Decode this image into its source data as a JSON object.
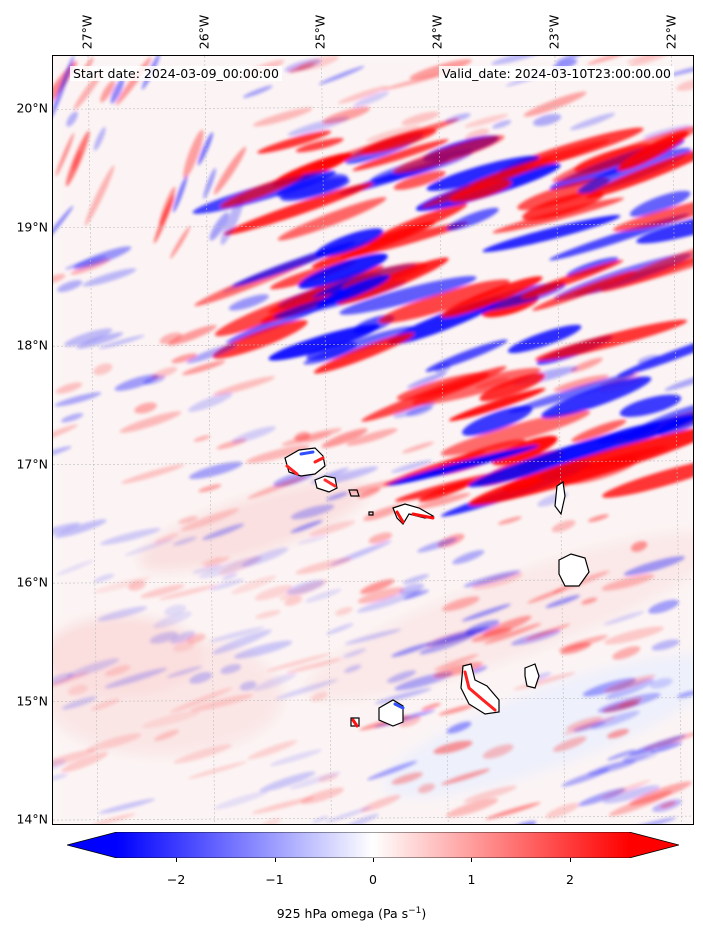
{
  "annotations": {
    "start_date": "Start date: 2024-03-09_00:00:00",
    "valid_date": "Valid_date: 2024-03-10T23:00:00.00"
  },
  "map": {
    "lon_labels": [
      "27°W",
      "26°W",
      "25°W",
      "24°W",
      "23°W",
      "22°W"
    ],
    "lat_labels": [
      "20°N",
      "19°N",
      "18°N",
      "17°N",
      "16°N",
      "15°N",
      "14°N"
    ],
    "extent": {
      "lon_min": -27.3,
      "lon_max": -21.8,
      "lat_min": 13.95,
      "lat_max": 20.45
    },
    "gridlines": true,
    "coastlines": true
  },
  "colorbar": {
    "label_prefix": "925 hPa omega (Pa s",
    "label_exp": "−1",
    "label_suffix": ")",
    "vmin": -2.6,
    "vmax": 2.6,
    "ticks": [
      "−2",
      "−1",
      "0",
      "1",
      "2"
    ],
    "tick_values": [
      -2,
      -1,
      0,
      1,
      2
    ],
    "extend": "both",
    "colormap": "bwr",
    "color_low": "#0000ff",
    "color_mid": "#ffffff",
    "color_high": "#ff0000"
  }
}
